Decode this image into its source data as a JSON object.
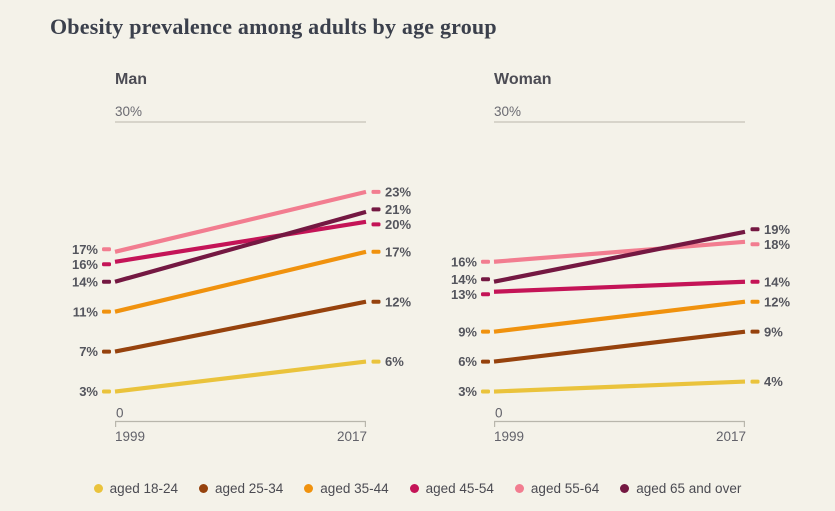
{
  "colors": {
    "background": "#f4f2e9",
    "title_text": "#3b404c",
    "header_text": "#4c4c54",
    "value_text": "#54555d",
    "muted_text": "#6b6b72",
    "axis": "#b8b6ac",
    "gridline": "#c5c3b9"
  },
  "chart_data": {
    "type": "line",
    "title": "Obesity prevalence among adults by age group",
    "x": [
      1999,
      2017
    ],
    "x_tick_labels": [
      "1999",
      "2017"
    ],
    "unit": "%",
    "ylim": [
      0,
      30
    ],
    "y_gridline": {
      "value": 30,
      "label": "30%"
    },
    "baseline_label": "0",
    "legend_position": "bottom",
    "panels": [
      {
        "title": "Man",
        "series": [
          {
            "name": "aged 18-24",
            "color": "#eac33c",
            "values": [
              3,
              6
            ]
          },
          {
            "name": "aged 25-34",
            "color": "#96420d",
            "values": [
              7,
              12
            ]
          },
          {
            "name": "aged 35-44",
            "color": "#f0920e",
            "values": [
              11,
              17
            ]
          },
          {
            "name": "aged 45-54",
            "color": "#c41457",
            "values": [
              16,
              20
            ]
          },
          {
            "name": "aged 55-64",
            "color": "#f27d90",
            "values": [
              17,
              23
            ]
          },
          {
            "name": "aged 65 and over",
            "color": "#741842",
            "values": [
              14,
              21
            ]
          }
        ]
      },
      {
        "title": "Woman",
        "series": [
          {
            "name": "aged 18-24",
            "color": "#eac33c",
            "values": [
              3,
              4
            ]
          },
          {
            "name": "aged 25-34",
            "color": "#96420d",
            "values": [
              6,
              9
            ]
          },
          {
            "name": "aged 35-44",
            "color": "#f0920e",
            "values": [
              9,
              12
            ]
          },
          {
            "name": "aged 45-54",
            "color": "#c41457",
            "values": [
              13,
              14
            ]
          },
          {
            "name": "aged 55-64",
            "color": "#f27d90",
            "values": [
              16,
              18
            ]
          },
          {
            "name": "aged 65 and over",
            "color": "#741842",
            "values": [
              14,
              19
            ]
          }
        ]
      }
    ],
    "legend": [
      {
        "label": "aged 18-24",
        "color": "#eac33c"
      },
      {
        "label": "aged 25-34",
        "color": "#96420d"
      },
      {
        "label": "aged 35-44",
        "color": "#f0920e"
      },
      {
        "label": "aged 45-54",
        "color": "#c41457"
      },
      {
        "label": "aged 55-64",
        "color": "#f27d90"
      },
      {
        "label": "aged 65 and over",
        "color": "#741842"
      }
    ]
  }
}
